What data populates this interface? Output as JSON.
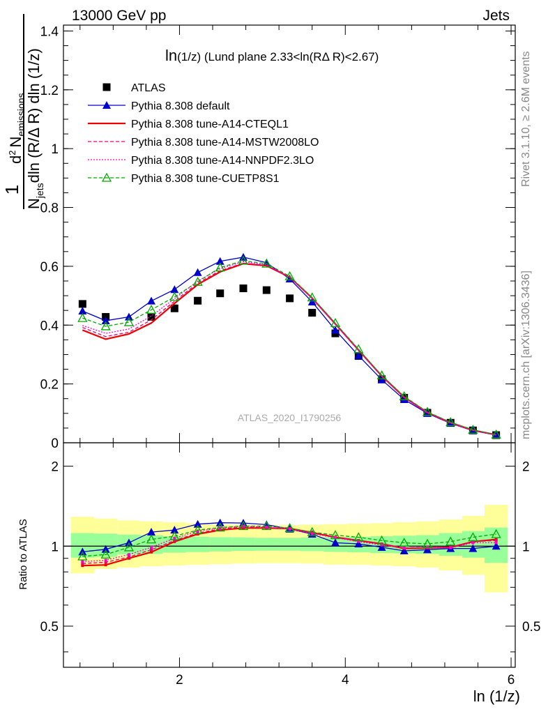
{
  "header": {
    "energy": "13000 GeV pp",
    "process": "Jets"
  },
  "side_labels": {
    "rivet": "Rivet 3.1.10, ≥ 2.6M events",
    "mcplots": "mcplots.cern.ch [arXiv:1306.3436]"
  },
  "chart_data": [
    {
      "type": "line",
      "panel": "main",
      "title": "ln(1/z) (Lund plane 2.33<ln(RΔ R)<2.67)",
      "title_parts": {
        "a": "ln",
        "b": "(1/z)",
        "c": " (Lund plane 2.33<ln(R",
        "d": "Δ",
        "e": " R)<2.67)"
      },
      "analysis_label": "ATLAS_2020_I1790256",
      "ylabel_parts": {
        "num": "1",
        "den_main": "N",
        "den_sub": "jets",
        "den_rest": "dln (R/Δ R)",
        "d2": "d",
        "d2_sup": "2",
        "n_em": "N",
        "n_em_sub": "emissions",
        "den2": "dln (R/Δ R) dln (1/z)"
      },
      "xlim": [
        0.6,
        6.05
      ],
      "ylim": [
        0,
        1.42
      ],
      "yticks": [
        0,
        0.2,
        0.4,
        0.6,
        0.8,
        1,
        1.2,
        1.4
      ],
      "ytick_labels": [
        "0",
        "0.2",
        "0.4",
        "0.6",
        "0.8",
        "1",
        "1.2",
        "1.4"
      ],
      "x": [
        0.83,
        1.11,
        1.39,
        1.66,
        1.94,
        2.22,
        2.49,
        2.77,
        3.05,
        3.33,
        3.6,
        3.88,
        4.16,
        4.44,
        4.71,
        4.99,
        5.27,
        5.54,
        5.82
      ],
      "series": [
        {
          "name": "ATLAS",
          "color": "#000000",
          "marker": "square",
          "values": [
            0.472,
            0.428,
            null,
            0.428,
            0.457,
            0.483,
            0.508,
            0.525,
            0.519,
            0.491,
            0.442,
            0.372,
            0.295,
            0.216,
            0.153,
            0.102,
            0.068,
            0.042,
            0.026
          ]
        },
        {
          "name": "Pythia 8.308 default",
          "color": "#0000cc",
          "marker": "triangle-filled",
          "dash": "",
          "values": [
            0.448,
            0.415,
            0.428,
            0.482,
            0.521,
            0.579,
            0.617,
            0.631,
            0.612,
            0.557,
            0.479,
            0.383,
            0.296,
            0.214,
            0.147,
            0.1,
            0.066,
            0.041,
            0.026
          ]
        },
        {
          "name": "Pythia 8.308 tune-A14-CTEQL1",
          "color": "#ee0000",
          "marker": "none",
          "dash": "",
          "values": [
            0.383,
            0.352,
            0.37,
            0.407,
            0.474,
            0.538,
            0.581,
            0.609,
            0.602,
            0.563,
            0.492,
            0.404,
            0.315,
            0.227,
            0.155,
            0.103,
            0.068,
            0.043,
            0.027
          ]
        },
        {
          "name": "Pythia 8.308 tune-A14-MSTW2008LO",
          "color": "#ee0077",
          "marker": "none",
          "dash": "5,3",
          "values": [
            0.392,
            0.361,
            0.376,
            0.418,
            0.481,
            0.543,
            0.585,
            0.611,
            0.603,
            0.563,
            0.491,
            0.403,
            0.314,
            0.226,
            0.154,
            0.103,
            0.068,
            0.043,
            0.027
          ]
        },
        {
          "name": "Pythia 8.308 tune-A14-NNPDF2.3LO",
          "color": "#ff00cc",
          "marker": "none",
          "dash": "2,2",
          "values": [
            0.399,
            0.372,
            0.387,
            0.431,
            0.49,
            0.55,
            0.592,
            0.616,
            0.605,
            0.563,
            0.49,
            0.402,
            0.313,
            0.225,
            0.153,
            0.102,
            0.067,
            0.042,
            0.026
          ]
        },
        {
          "name": "Pythia 8.308 tune-CUETP8S1",
          "color": "#00aa00",
          "marker": "triangle-open",
          "dash": "5,3",
          "values": [
            0.424,
            0.396,
            0.41,
            0.452,
            0.496,
            0.547,
            0.596,
            0.619,
            0.609,
            0.566,
            0.494,
            0.407,
            0.318,
            0.229,
            0.158,
            0.105,
            0.07,
            0.044,
            0.028
          ]
        }
      ],
      "legend_position": "top-left"
    },
    {
      "type": "line",
      "panel": "ratio",
      "xlabel": "ln (1/z)",
      "ylabel": "Ratio to ATLAS",
      "xlim": [
        0.6,
        6.05
      ],
      "ylim": [
        0.35,
        2.45
      ],
      "log_y": true,
      "xticks": [
        2,
        4,
        6
      ],
      "xtick_labels": [
        "2",
        "4",
        "6"
      ],
      "yticks": [
        0.5,
        1,
        2
      ],
      "ytick_labels": [
        "0.5",
        "1",
        "2"
      ],
      "x": [
        0.83,
        1.11,
        1.39,
        1.66,
        1.94,
        2.22,
        2.49,
        2.77,
        3.05,
        3.33,
        3.6,
        3.88,
        4.16,
        4.44,
        4.71,
        4.99,
        5.27,
        5.54,
        5.82
      ],
      "bin_edges": [
        0.69,
        0.97,
        1.25,
        1.52,
        1.8,
        2.08,
        2.36,
        2.63,
        2.91,
        3.19,
        3.46,
        3.74,
        4.02,
        4.3,
        4.57,
        4.85,
        5.13,
        5.41,
        5.68,
        5.96
      ],
      "band_stat": {
        "lo": [
          0.905,
          0.91,
          0.93,
          0.935,
          0.945,
          0.95,
          0.955,
          0.96,
          0.962,
          0.962,
          0.958,
          0.952,
          0.948,
          0.942,
          0.94,
          0.935,
          0.92,
          0.905,
          0.865
        ],
        "hi": [
          1.12,
          1.115,
          1.105,
          1.1,
          1.09,
          1.085,
          1.08,
          1.078,
          1.075,
          1.075,
          1.078,
          1.082,
          1.085,
          1.09,
          1.095,
          1.1,
          1.12,
          1.14,
          1.175
        ]
      },
      "band_total": {
        "lo": [
          0.79,
          0.82,
          0.83,
          0.84,
          0.845,
          0.85,
          0.855,
          0.86,
          0.862,
          0.862,
          0.86,
          0.852,
          0.85,
          0.845,
          0.84,
          0.83,
          0.81,
          0.78,
          0.67
        ],
        "hi": [
          1.29,
          1.27,
          1.25,
          1.24,
          1.23,
          1.22,
          1.21,
          1.205,
          1.2,
          1.2,
          1.205,
          1.21,
          1.215,
          1.22,
          1.23,
          1.24,
          1.26,
          1.3,
          1.43
        ]
      },
      "series": [
        {
          "name": "Pythia 8.308 default",
          "color": "#0000cc",
          "marker": "triangle-filled",
          "dash": "",
          "values": [
            0.952,
            0.973,
            1.03,
            1.13,
            1.15,
            1.21,
            1.225,
            1.222,
            1.205,
            1.16,
            1.11,
            1.03,
            1.02,
            0.99,
            0.96,
            0.97,
            0.98,
            0.98,
            1.0
          ]
        },
        {
          "name": "Pythia 8.308 tune-A14-CTEQL1",
          "color": "#ee0000",
          "marker": "square-small",
          "dash": "",
          "values": [
            0.845,
            0.85,
            0.9,
            0.95,
            1.04,
            1.11,
            1.15,
            1.17,
            1.17,
            1.165,
            1.125,
            1.08,
            1.05,
            1.02,
            0.98,
            0.985,
            0.99,
            1.04,
            1.06
          ]
        },
        {
          "name": "Pythia 8.308 tune-A14-MSTW2008LO",
          "color": "#ee0077",
          "marker": "square-small",
          "dash": "5,3",
          "values": [
            0.86,
            0.87,
            0.91,
            0.97,
            1.05,
            1.12,
            1.16,
            1.18,
            1.175,
            1.165,
            1.12,
            1.08,
            1.05,
            1.02,
            0.985,
            0.99,
            0.99,
            1.04,
            1.05
          ]
        },
        {
          "name": "Pythia 8.308 tune-A14-NNPDF2.3LO",
          "color": "#ff00cc",
          "marker": "square-small",
          "dash": "2,2",
          "values": [
            0.875,
            0.885,
            0.93,
            0.99,
            1.07,
            1.14,
            1.17,
            1.19,
            1.18,
            1.16,
            1.115,
            1.075,
            1.04,
            1.01,
            0.985,
            0.99,
            0.985,
            1.03,
            1.03
          ]
        },
        {
          "name": "Pythia 8.308 tune-CUETP8S1",
          "color": "#00aa00",
          "marker": "triangle-open",
          "dash": "5,3",
          "values": [
            0.915,
            0.93,
            0.99,
            1.06,
            1.09,
            1.15,
            1.175,
            1.19,
            1.19,
            1.17,
            1.13,
            1.1,
            1.08,
            1.05,
            1.03,
            1.02,
            1.04,
            1.08,
            1.11
          ]
        }
      ]
    }
  ]
}
